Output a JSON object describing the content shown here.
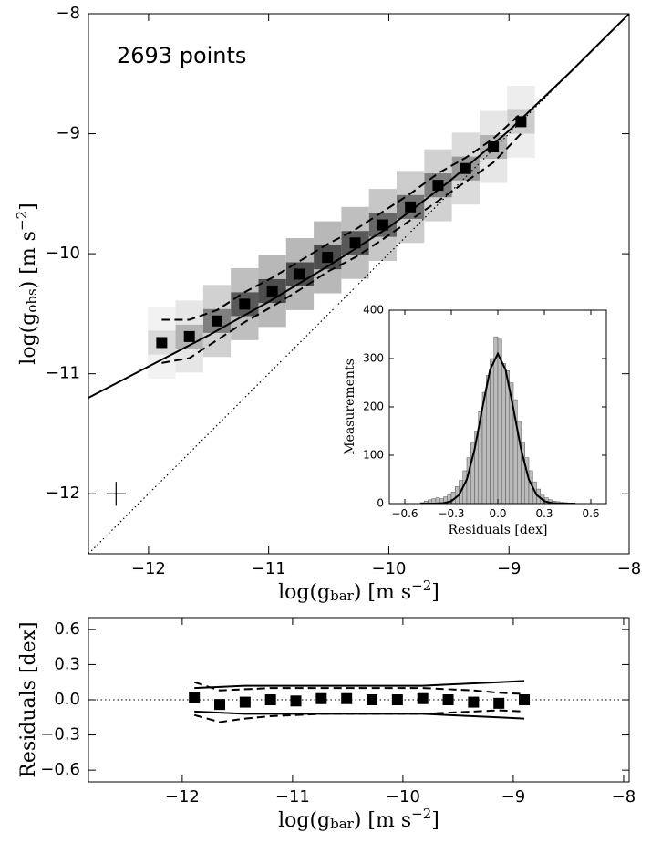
{
  "chart_data": [
    {
      "type": "scatter",
      "annotation": "2693 points",
      "xlabel": [
        {
          "text": "log(g"
        },
        {
          "text": "bar",
          "script": "sub"
        },
        {
          "text": ") [m s"
        },
        {
          "text": "−2",
          "script": "sup"
        },
        {
          "text": "]"
        }
      ],
      "ylabel": [
        {
          "text": "log(g"
        },
        {
          "text": "obs",
          "script": "sub"
        },
        {
          "text": ") [m s"
        },
        {
          "text": "−2",
          "script": "sup"
        },
        {
          "text": "]"
        }
      ],
      "xlim": [
        -12.5,
        -8
      ],
      "ylim": [
        -12.5,
        -8
      ],
      "xticks": [
        {
          "value": -12,
          "label": "−12"
        },
        {
          "value": -11,
          "label": "−11"
        },
        {
          "value": -10,
          "label": "−10"
        },
        {
          "value": -9,
          "label": "−9"
        },
        {
          "value": -8,
          "label": "−8"
        }
      ],
      "yticks": [
        {
          "value": -12,
          "label": "−12"
        },
        {
          "value": -11,
          "label": "−11"
        },
        {
          "value": -10,
          "label": "−10"
        },
        {
          "value": -9,
          "label": "−9"
        },
        {
          "value": -8,
          "label": "−8"
        }
      ],
      "heatmap": {
        "x": [
          -11.89,
          -11.66,
          -11.43,
          -11.2,
          -10.97,
          -10.74,
          -10.51,
          -10.28,
          -10.05,
          -9.82,
          -9.59,
          -9.36,
          -9.13,
          -8.9
        ],
        "rows": [
          {
            "y": [
              -10.94,
              -10.89,
              -10.76,
              -10.62,
              -10.51,
              -10.37,
              -10.23,
              -10.11,
              -9.96,
              -9.81,
              -9.63,
              -9.49,
              -9.31,
              -9.1
            ],
            "values": [
              0.05,
              0.1,
              0.18,
              0.25,
              0.28,
              0.28,
              0.28,
              0.25,
              0.22,
              0.2,
              0.18,
              0.14,
              0.1,
              0.07
            ]
          },
          {
            "y": [
              -10.74,
              -10.69,
              -10.56,
              -10.42,
              -10.31,
              -10.17,
              -10.03,
              -9.91,
              -9.76,
              -9.61,
              -9.43,
              -9.29,
              -9.11,
              -8.9
            ],
            "values": [
              0.15,
              0.3,
              0.5,
              0.65,
              0.7,
              0.7,
              0.7,
              0.65,
              0.6,
              0.55,
              0.5,
              0.4,
              0.3,
              0.2
            ]
          },
          {
            "y": [
              -10.54,
              -10.49,
              -10.36,
              -10.22,
              -10.11,
              -9.97,
              -9.83,
              -9.71,
              -9.56,
              -9.41,
              -9.23,
              -9.09,
              -8.91,
              -8.7
            ],
            "values": [
              0.05,
              0.1,
              0.18,
              0.25,
              0.28,
              0.28,
              0.28,
              0.25,
              0.22,
              0.2,
              0.18,
              0.14,
              0.1,
              0.07
            ]
          }
        ]
      },
      "series": [
        {
          "style": "dotted",
          "color": "#000000",
          "x": [
            -12.5,
            -8
          ],
          "values": [
            -12.5,
            -8
          ]
        },
        {
          "style": "solid",
          "color": "#000000",
          "x": [
            -12.5,
            -12,
            -11.5,
            -11,
            -10.5,
            -10,
            -9.5,
            -9,
            -8.5,
            -8
          ],
          "values": [
            -11.2,
            -10.94,
            -10.68,
            -10.4,
            -10.1,
            -9.78,
            -9.4,
            -8.975,
            -8.497,
            -8
          ]
        },
        {
          "style": "dashed",
          "color": "#000000",
          "x": [
            -11.89,
            -11.66,
            -11.43,
            -11.2,
            -10.97,
            -10.74,
            -10.51,
            -10.28,
            -10.05,
            -9.82,
            -9.59,
            -9.36,
            -9.13,
            -8.9
          ],
          "values": [
            -10.55,
            -10.55,
            -10.47,
            -10.32,
            -10.2,
            -10.06,
            -9.92,
            -9.8,
            -9.65,
            -9.5,
            -9.33,
            -9.2,
            -9.04,
            -8.83
          ]
        },
        {
          "style": "dashed",
          "color": "#000000",
          "x": [
            -11.89,
            -11.66,
            -11.43,
            -11.2,
            -10.97,
            -10.74,
            -10.51,
            -10.28,
            -10.05,
            -9.82,
            -9.59,
            -9.36,
            -9.13,
            -8.9
          ],
          "values": [
            -10.91,
            -10.87,
            -10.72,
            -10.57,
            -10.44,
            -10.3,
            -10.15,
            -10.03,
            -9.88,
            -9.72,
            -9.56,
            -9.4,
            -9.24,
            -9.0
          ]
        },
        {
          "style": "markers",
          "color": "#000000",
          "x": [
            -11.89,
            -11.66,
            -11.43,
            -11.2,
            -10.97,
            -10.74,
            -10.51,
            -10.28,
            -10.05,
            -9.82,
            -9.59,
            -9.36,
            -9.13,
            -8.9
          ],
          "values": [
            -10.74,
            -10.69,
            -10.56,
            -10.42,
            -10.31,
            -10.17,
            -10.03,
            -9.91,
            -9.76,
            -9.61,
            -9.43,
            -9.29,
            -9.11,
            -8.9
          ]
        }
      ],
      "error_bar": {
        "x": -12.27,
        "y": -12.0,
        "xerr": 0.08,
        "yerr": 0.1
      }
    },
    {
      "type": "histogram",
      "xlabel": "Residuals [dex]",
      "ylabel": "Measurements",
      "xlim": [
        -0.7,
        0.7
      ],
      "ylim": [
        0,
        400
      ],
      "xticks": [
        {
          "value": -0.6,
          "label": "−0.6"
        },
        {
          "value": -0.3,
          "label": "−0.3"
        },
        {
          "value": 0,
          "label": "0.0"
        },
        {
          "value": 0.3,
          "label": "0.3"
        },
        {
          "value": 0.6,
          "label": "0.6"
        }
      ],
      "yticks": [
        0,
        100,
        200,
        300,
        400
      ],
      "color": "#bbbbbb",
      "bins": [
        -0.5,
        -0.475,
        -0.45,
        -0.425,
        -0.4,
        -0.375,
        -0.35,
        -0.325,
        -0.3,
        -0.275,
        -0.25,
        -0.225,
        -0.2,
        -0.175,
        -0.15,
        -0.125,
        -0.1,
        -0.075,
        -0.05,
        -0.025,
        0,
        0.025,
        0.05,
        0.075,
        0.1,
        0.125,
        0.15,
        0.175,
        0.2,
        0.225,
        0.25,
        0.275,
        0.3,
        0.325,
        0.35,
        0.375,
        0.4,
        0.425,
        0.45,
        0.475,
        0.5
      ],
      "counts": [
        2,
        5,
        8,
        10,
        12,
        10,
        14,
        18,
        24,
        35,
        48,
        68,
        95,
        125,
        150,
        190,
        230,
        265,
        300,
        345,
        340,
        290,
        275,
        250,
        215,
        170,
        125,
        95,
        68,
        45,
        30,
        20,
        12,
        8,
        5,
        4,
        3,
        2,
        1,
        1
      ],
      "fit": {
        "color": "#000000",
        "x": [
          -0.5,
          -0.45,
          -0.4,
          -0.35,
          -0.3,
          -0.25,
          -0.2,
          -0.15,
          -0.1,
          -0.05,
          0,
          0.05,
          0.1,
          0.15,
          0.2,
          0.25,
          0.3,
          0.35,
          0.4,
          0.45,
          0.5
        ],
        "values": [
          0,
          0,
          0,
          1,
          5,
          18,
          50,
          112,
          197,
          277,
          310,
          277,
          197,
          112,
          50,
          18,
          5,
          1,
          0,
          0,
          0
        ]
      }
    },
    {
      "type": "scatter",
      "xlabel": [
        {
          "text": "log(g"
        },
        {
          "text": "bar",
          "script": "sub"
        },
        {
          "text": ") [m s"
        },
        {
          "text": "−2",
          "script": "sup"
        },
        {
          "text": "]"
        }
      ],
      "ylabel": [
        {
          "text": "Residuals [dex]"
        }
      ],
      "xlim": [
        -12.85,
        -7.95
      ],
      "ylim": [
        -0.7,
        0.7
      ],
      "xticks": [
        {
          "value": -12,
          "label": "−12"
        },
        {
          "value": -11,
          "label": "−11"
        },
        {
          "value": -10,
          "label": "−10"
        },
        {
          "value": -9,
          "label": "−9"
        },
        {
          "value": -8,
          "label": "−8"
        }
      ],
      "yticks": [
        {
          "value": -0.6,
          "label": "−0.6"
        },
        {
          "value": -0.3,
          "label": "−0.3"
        },
        {
          "value": 0,
          "label": "0.0"
        },
        {
          "value": 0.3,
          "label": "0.3"
        },
        {
          "value": 0.6,
          "label": "0.6"
        }
      ],
      "reference_line": 0,
      "series": [
        {
          "style": "solid",
          "color": "#000000",
          "x": [
            -11.89,
            -11.66,
            -11.43,
            -11.2,
            -10.97,
            -10.74,
            -10.51,
            -10.28,
            -10.05,
            -9.82,
            -9.59,
            -9.36,
            -9.13,
            -8.9
          ],
          "values": [
            0.1,
            0.11,
            0.12,
            0.12,
            0.12,
            0.12,
            0.12,
            0.12,
            0.12,
            0.12,
            0.13,
            0.14,
            0.15,
            0.16
          ]
        },
        {
          "style": "solid",
          "color": "#000000",
          "x": [
            -11.89,
            -11.66,
            -11.43,
            -11.2,
            -10.97,
            -10.74,
            -10.51,
            -10.28,
            -10.05,
            -9.82,
            -9.59,
            -9.36,
            -9.13,
            -8.9
          ],
          "values": [
            -0.1,
            -0.11,
            -0.12,
            -0.12,
            -0.12,
            -0.12,
            -0.12,
            -0.12,
            -0.12,
            -0.12,
            -0.13,
            -0.14,
            -0.15,
            -0.16
          ]
        },
        {
          "style": "dashed",
          "color": "#000000",
          "x": [
            -11.89,
            -11.66,
            -11.43,
            -11.2,
            -10.97,
            -10.74,
            -10.51,
            -10.28,
            -10.05,
            -9.82,
            -9.59,
            -9.36,
            -9.13,
            -8.9
          ],
          "values": [
            0.15,
            0.08,
            0.09,
            0.1,
            0.1,
            0.1,
            0.1,
            0.1,
            0.1,
            0.1,
            0.09,
            0.08,
            0.06,
            0.05
          ]
        },
        {
          "style": "dashed",
          "color": "#000000",
          "x": [
            -11.89,
            -11.66,
            -11.43,
            -11.2,
            -10.97,
            -10.74,
            -10.51,
            -10.28,
            -10.05,
            -9.82,
            -9.59,
            -9.36,
            -9.13,
            -8.9
          ],
          "values": [
            -0.13,
            -0.19,
            -0.16,
            -0.14,
            -0.13,
            -0.12,
            -0.12,
            -0.12,
            -0.12,
            -0.12,
            -0.11,
            -0.1,
            -0.09,
            -0.1
          ]
        },
        {
          "style": "markers",
          "color": "#000000",
          "x": [
            -11.89,
            -11.66,
            -11.43,
            -11.2,
            -10.97,
            -10.74,
            -10.51,
            -10.28,
            -10.05,
            -9.82,
            -9.59,
            -9.36,
            -9.13,
            -8.9
          ],
          "values": [
            0.02,
            -0.04,
            -0.02,
            0,
            -0.01,
            0.01,
            0.01,
            0,
            0,
            0.01,
            0,
            -0.02,
            -0.03,
            0
          ]
        }
      ]
    }
  ]
}
